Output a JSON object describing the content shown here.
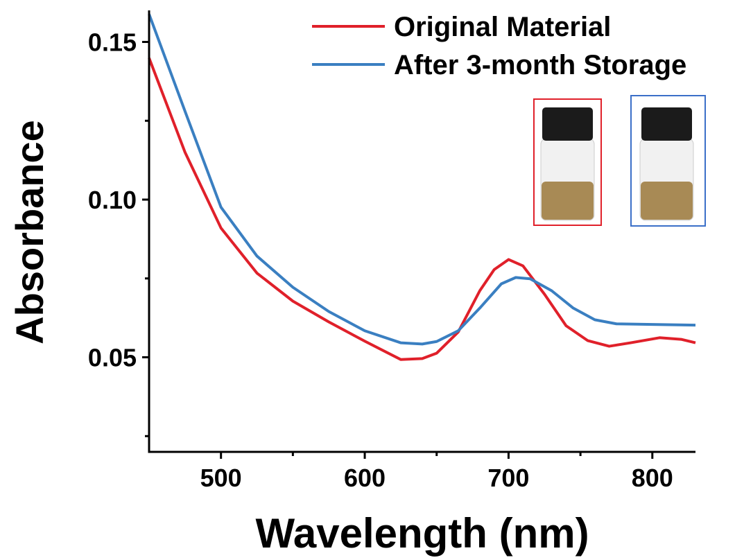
{
  "chart_data": {
    "type": "line",
    "x_label": "Wavelength (nm)",
    "y_label": "Absorbance",
    "xlim": [
      450,
      830
    ],
    "ylim": [
      0.02,
      0.16
    ],
    "xticks": [
      500,
      600,
      700,
      800
    ],
    "xminorticks": [
      550,
      650,
      750
    ],
    "yticks": [
      0.05,
      {
        "value": 0.1,
        "label": "0.10"
      },
      0.15
    ],
    "yminorticks": [
      0.025,
      0.075,
      0.125
    ],
    "legend": "upper right",
    "series": [
      {
        "name": "Original Material",
        "color": "#e0202a",
        "x": [
          450,
          475,
          500,
          525,
          550,
          575,
          600,
          625,
          640,
          650,
          665,
          680,
          690,
          700,
          710,
          725,
          740,
          755,
          770,
          785,
          805,
          820,
          830
        ],
        "values": [
          0.1449,
          0.115,
          0.091,
          0.0767,
          0.0678,
          0.0612,
          0.0551,
          0.0493,
          0.0496,
          0.0513,
          0.058,
          0.0711,
          0.0778,
          0.081,
          0.079,
          0.07,
          0.06,
          0.0553,
          0.0535,
          0.0546,
          0.0562,
          0.0557,
          0.0546
        ]
      },
      {
        "name": "After 3-month Storage",
        "color": "#3a7fc1",
        "x": [
          450,
          475,
          500,
          525,
          550,
          575,
          600,
          625,
          640,
          650,
          665,
          680,
          695,
          705,
          715,
          730,
          745,
          760,
          775,
          800,
          830
        ],
        "values": [
          0.1588,
          0.128,
          0.0976,
          0.0821,
          0.0722,
          0.0645,
          0.0584,
          0.0546,
          0.0542,
          0.055,
          0.0584,
          0.0656,
          0.0733,
          0.0753,
          0.0749,
          0.0711,
          0.0656,
          0.0619,
          0.0606,
          0.0604,
          0.0602
        ]
      }
    ]
  }
}
